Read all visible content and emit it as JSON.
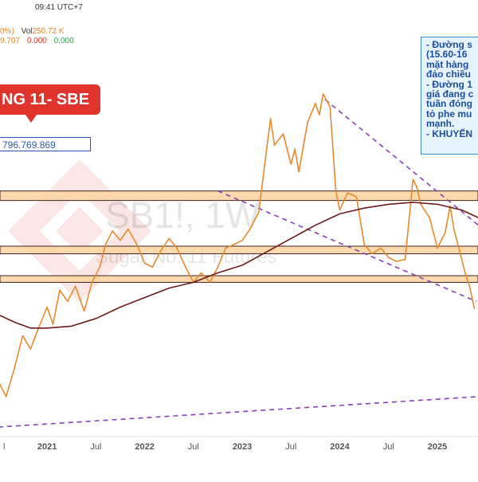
{
  "header": {
    "time": "09:41 UTC+7",
    "change": "0%)",
    "vol_label": "Vol",
    "vol_value": "250.72 K",
    "ind_1": "9.707",
    "ind_2": "0.000",
    "ind_3": "0.000"
  },
  "labels": {
    "title_box": "NG 11- SBE",
    "value_box": "796.769.869"
  },
  "watermark": {
    "symbol": "SB1!, 1W",
    "name": "Sugar No. 11 Futures"
  },
  "note_lines": [
    "- Đường s",
    "(15.60-16",
    "mặt hàng",
    "đảo chiều",
    "- Đường 1",
    "giá đang c",
    "tuần đóng",
    "tỏ phe mu",
    "mạnh.",
    "- KHUYẾN"
  ],
  "colors": {
    "price": "#e8892c",
    "ma": "#6e1a1a",
    "trend": "#8a3fb5",
    "zone_fill": "#fbd4a0",
    "zone_border": "#3a2020",
    "label_red": "#e0332b",
    "note_blue": "#1a4fa0"
  },
  "chart_data": {
    "type": "line",
    "x_ticks": [
      "l",
      "2021",
      "Jul",
      "2022",
      "Jul",
      "2023",
      "Jul",
      "2024",
      "Jul",
      "2025"
    ],
    "ylim": [
      9.5,
      29.5
    ],
    "series": [
      {
        "type": "line",
        "values": [
          [
            2020.5,
            12.4
          ],
          [
            2020.58,
            11.6
          ],
          [
            2020.66,
            13.0
          ],
          [
            2020.75,
            14.8
          ],
          [
            2020.83,
            14.1
          ],
          [
            2020.92,
            15.3
          ],
          [
            2021.0,
            16.3
          ],
          [
            2021.06,
            15.4
          ],
          [
            2021.13,
            17.2
          ],
          [
            2021.21,
            16.6
          ],
          [
            2021.29,
            17.4
          ],
          [
            2021.38,
            16.1
          ],
          [
            2021.46,
            17.6
          ],
          [
            2021.54,
            18.4
          ],
          [
            2021.6,
            19.6
          ],
          [
            2021.67,
            20.3
          ],
          [
            2021.75,
            19.8
          ],
          [
            2021.83,
            20.4
          ],
          [
            2021.92,
            19.6
          ],
          [
            2022.0,
            18.6
          ],
          [
            2022.08,
            18.4
          ],
          [
            2022.17,
            19.3
          ],
          [
            2022.25,
            19.9
          ],
          [
            2022.33,
            19.4
          ],
          [
            2022.42,
            18.4
          ],
          [
            2022.5,
            17.6
          ],
          [
            2022.58,
            18.1
          ],
          [
            2022.67,
            17.6
          ],
          [
            2022.75,
            18.4
          ],
          [
            2022.83,
            19.4
          ],
          [
            2022.92,
            19.6
          ],
          [
            2023.0,
            19.8
          ],
          [
            2023.08,
            20.4
          ],
          [
            2023.17,
            21.3
          ],
          [
            2023.25,
            24.6
          ],
          [
            2023.29,
            26.2
          ],
          [
            2023.33,
            24.8
          ],
          [
            2023.42,
            25.4
          ],
          [
            2023.5,
            23.8
          ],
          [
            2023.54,
            24.6
          ],
          [
            2023.58,
            23.4
          ],
          [
            2023.67,
            26.0
          ],
          [
            2023.75,
            27.0
          ],
          [
            2023.79,
            26.4
          ],
          [
            2023.83,
            27.5
          ],
          [
            2023.9,
            26.8
          ],
          [
            2023.96,
            22.4
          ],
          [
            2024.0,
            21.4
          ],
          [
            2024.08,
            22.3
          ],
          [
            2024.17,
            22.1
          ],
          [
            2024.25,
            19.6
          ],
          [
            2024.33,
            19.1
          ],
          [
            2024.42,
            19.4
          ],
          [
            2024.5,
            18.9
          ],
          [
            2024.58,
            18.7
          ],
          [
            2024.67,
            18.8
          ],
          [
            2024.75,
            23.0
          ],
          [
            2024.79,
            22.6
          ],
          [
            2024.83,
            21.7
          ],
          [
            2024.92,
            21.0
          ],
          [
            2025.0,
            19.4
          ],
          [
            2025.08,
            20.2
          ],
          [
            2025.13,
            21.6
          ],
          [
            2025.17,
            20.4
          ],
          [
            2025.25,
            18.8
          ],
          [
            2025.29,
            18.0
          ],
          [
            2025.33,
            17.4
          ],
          [
            2025.38,
            16.2
          ]
        ]
      },
      {
        "type": "line",
        "values": [
          [
            2020.5,
            15.9
          ],
          [
            2020.67,
            15.5
          ],
          [
            2020.83,
            15.2
          ],
          [
            2021.0,
            15.2
          ],
          [
            2021.25,
            15.3
          ],
          [
            2021.5,
            15.7
          ],
          [
            2021.75,
            16.3
          ],
          [
            2022.0,
            16.8
          ],
          [
            2022.25,
            17.3
          ],
          [
            2022.5,
            17.6
          ],
          [
            2022.75,
            18.1
          ],
          [
            2023.0,
            18.5
          ],
          [
            2023.25,
            19.2
          ],
          [
            2023.5,
            19.9
          ],
          [
            2023.75,
            20.6
          ],
          [
            2024.0,
            21.2
          ],
          [
            2024.25,
            21.5
          ],
          [
            2024.5,
            21.7
          ],
          [
            2024.75,
            21.8
          ],
          [
            2025.0,
            21.7
          ],
          [
            2025.25,
            21.4
          ],
          [
            2025.42,
            21.0
          ]
        ]
      }
    ],
    "zones": [
      [
        21.9,
        22.4
      ],
      [
        19.1,
        19.5
      ],
      [
        17.6,
        17.95
      ]
    ],
    "trendlines": [
      [
        [
          2022.75,
          22.4
        ],
        [
          2025.4,
          16.6
        ]
      ],
      [
        [
          2023.85,
          27.2
        ],
        [
          2025.42,
          20.6
        ]
      ],
      [
        [
          2020.5,
          10.0
        ],
        [
          2025.42,
          11.6
        ]
      ]
    ]
  }
}
